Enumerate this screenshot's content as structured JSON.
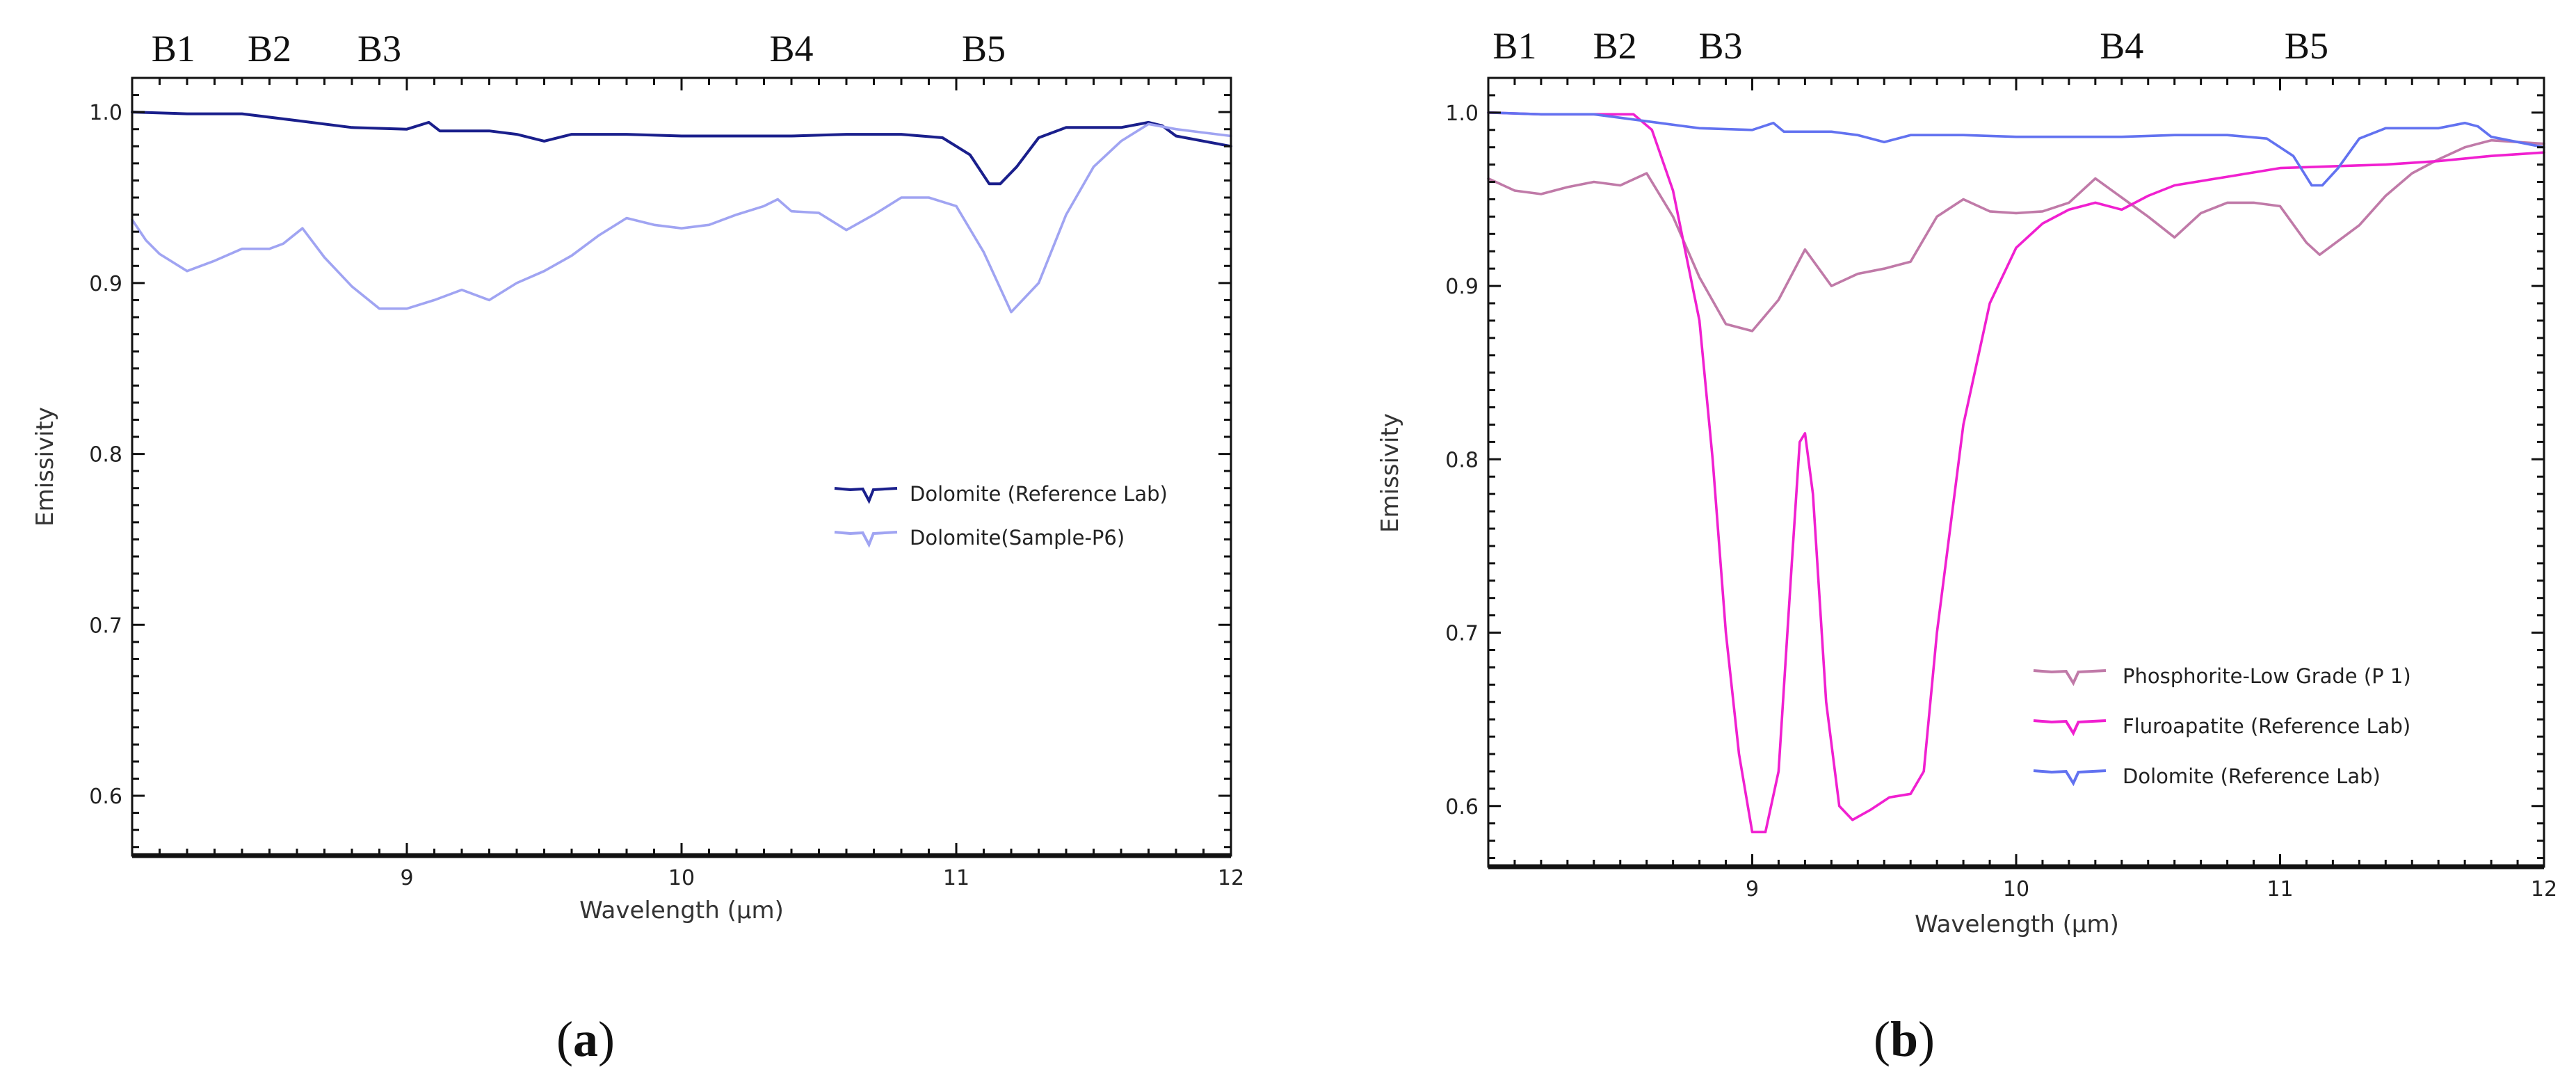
{
  "chart_data": [
    {
      "type": "line",
      "panel_label": "a",
      "xlabel": "Wavelength (μm)",
      "ylabel": "Emissivity",
      "xlim": [
        8.0,
        12.0
      ],
      "ylim": [
        0.565,
        1.02
      ],
      "x_ticks": [
        9,
        10,
        11,
        12
      ],
      "y_ticks": [
        0.6,
        0.7,
        0.8,
        0.9,
        1.0
      ],
      "x_tick_labels": [
        "9",
        "10",
        "11",
        "12"
      ],
      "y_tick_labels": [
        "0.6",
        "0.7",
        "0.8",
        "0.9",
        "1.0"
      ],
      "grid": false,
      "legend_position": "middle-right",
      "bands": [
        {
          "label": "B1",
          "x": 8.15
        },
        {
          "label": "B2",
          "x": 8.5
        },
        {
          "label": "B3",
          "x": 8.9
        },
        {
          "label": "B4",
          "x": 10.4
        },
        {
          "label": "B5",
          "x": 11.1
        }
      ],
      "series": [
        {
          "name": "Dolomite (Reference Lab)",
          "color": "#1a1f8c",
          "points": [
            [
              8.0,
              1.0
            ],
            [
              8.2,
              0.999
            ],
            [
              8.4,
              0.999
            ],
            [
              8.6,
              0.995
            ],
            [
              8.8,
              0.991
            ],
            [
              9.0,
              0.99
            ],
            [
              9.08,
              0.994
            ],
            [
              9.12,
              0.989
            ],
            [
              9.3,
              0.989
            ],
            [
              9.4,
              0.987
            ],
            [
              9.5,
              0.983
            ],
            [
              9.6,
              0.987
            ],
            [
              9.8,
              0.987
            ],
            [
              10.0,
              0.986
            ],
            [
              10.2,
              0.986
            ],
            [
              10.4,
              0.986
            ],
            [
              10.6,
              0.987
            ],
            [
              10.8,
              0.987
            ],
            [
              10.95,
              0.985
            ],
            [
              11.05,
              0.975
            ],
            [
              11.12,
              0.958
            ],
            [
              11.16,
              0.958
            ],
            [
              11.22,
              0.968
            ],
            [
              11.3,
              0.985
            ],
            [
              11.4,
              0.991
            ],
            [
              11.6,
              0.991
            ],
            [
              11.7,
              0.994
            ],
            [
              11.75,
              0.992
            ],
            [
              11.8,
              0.986
            ],
            [
              12.0,
              0.98
            ]
          ]
        },
        {
          "name": "Dolomite(Sample-P6)",
          "color": "#a0a4f2",
          "points": [
            [
              8.0,
              0.937
            ],
            [
              8.05,
              0.925
            ],
            [
              8.1,
              0.917
            ],
            [
              8.2,
              0.907
            ],
            [
              8.3,
              0.913
            ],
            [
              8.4,
              0.92
            ],
            [
              8.5,
              0.92
            ],
            [
              8.55,
              0.923
            ],
            [
              8.62,
              0.932
            ],
            [
              8.7,
              0.915
            ],
            [
              8.8,
              0.898
            ],
            [
              8.9,
              0.885
            ],
            [
              9.0,
              0.885
            ],
            [
              9.1,
              0.89
            ],
            [
              9.2,
              0.896
            ],
            [
              9.3,
              0.89
            ],
            [
              9.4,
              0.9
            ],
            [
              9.5,
              0.907
            ],
            [
              9.6,
              0.916
            ],
            [
              9.7,
              0.928
            ],
            [
              9.8,
              0.938
            ],
            [
              9.9,
              0.934
            ],
            [
              10.0,
              0.932
            ],
            [
              10.1,
              0.934
            ],
            [
              10.2,
              0.94
            ],
            [
              10.3,
              0.945
            ],
            [
              10.35,
              0.949
            ],
            [
              10.4,
              0.942
            ],
            [
              10.5,
              0.941
            ],
            [
              10.6,
              0.931
            ],
            [
              10.7,
              0.94
            ],
            [
              10.8,
              0.95
            ],
            [
              10.9,
              0.95
            ],
            [
              11.0,
              0.945
            ],
            [
              11.1,
              0.918
            ],
            [
              11.2,
              0.883
            ],
            [
              11.3,
              0.9
            ],
            [
              11.4,
              0.94
            ],
            [
              11.5,
              0.968
            ],
            [
              11.6,
              0.983
            ],
            [
              11.7,
              0.993
            ],
            [
              11.8,
              0.99
            ],
            [
              11.9,
              0.988
            ],
            [
              12.0,
              0.986
            ]
          ]
        }
      ]
    },
    {
      "type": "line",
      "panel_label": "b",
      "xlabel": "Wavelength (μm)",
      "ylabel": "Emissivity",
      "xlim": [
        8.0,
        12.0
      ],
      "ylim": [
        0.565,
        1.02
      ],
      "x_ticks": [
        9,
        10,
        11,
        12
      ],
      "y_ticks": [
        0.6,
        0.7,
        0.8,
        0.9,
        1.0
      ],
      "x_tick_labels": [
        "9",
        "10",
        "11",
        "12"
      ],
      "y_tick_labels": [
        "0.6",
        "0.7",
        "0.8",
        "0.9",
        "1.0"
      ],
      "grid": false,
      "legend_position": "bottom-right",
      "bands": [
        {
          "label": "B1",
          "x": 8.1
        },
        {
          "label": "B2",
          "x": 8.48
        },
        {
          "label": "B3",
          "x": 8.88
        },
        {
          "label": "B4",
          "x": 10.4
        },
        {
          "label": "B5",
          "x": 11.1
        }
      ],
      "series": [
        {
          "name": "Phosphorite-Low Grade (P 1)",
          "color": "#c07aa8",
          "points": [
            [
              8.0,
              0.962
            ],
            [
              8.1,
              0.955
            ],
            [
              8.2,
              0.953
            ],
            [
              8.3,
              0.957
            ],
            [
              8.4,
              0.96
            ],
            [
              8.5,
              0.958
            ],
            [
              8.6,
              0.965
            ],
            [
              8.7,
              0.94
            ],
            [
              8.8,
              0.905
            ],
            [
              8.9,
              0.878
            ],
            [
              9.0,
              0.874
            ],
            [
              9.1,
              0.892
            ],
            [
              9.2,
              0.921
            ],
            [
              9.3,
              0.9
            ],
            [
              9.4,
              0.907
            ],
            [
              9.5,
              0.91
            ],
            [
              9.6,
              0.914
            ],
            [
              9.7,
              0.94
            ],
            [
              9.8,
              0.95
            ],
            [
              9.9,
              0.943
            ],
            [
              10.0,
              0.942
            ],
            [
              10.1,
              0.943
            ],
            [
              10.2,
              0.948
            ],
            [
              10.3,
              0.962
            ],
            [
              10.4,
              0.951
            ],
            [
              10.5,
              0.94
            ],
            [
              10.6,
              0.928
            ],
            [
              10.7,
              0.942
            ],
            [
              10.8,
              0.948
            ],
            [
              10.9,
              0.948
            ],
            [
              11.0,
              0.946
            ],
            [
              11.1,
              0.925
            ],
            [
              11.15,
              0.918
            ],
            [
              11.3,
              0.935
            ],
            [
              11.4,
              0.952
            ],
            [
              11.5,
              0.965
            ],
            [
              11.6,
              0.973
            ],
            [
              11.7,
              0.98
            ],
            [
              11.8,
              0.984
            ],
            [
              12.0,
              0.982
            ]
          ]
        },
        {
          "name": "Fluroapatite (Reference Lab)",
          "color": "#f020d0",
          "points": [
            [
              8.0,
              1.0
            ],
            [
              8.2,
              0.999
            ],
            [
              8.4,
              0.999
            ],
            [
              8.55,
              0.999
            ],
            [
              8.62,
              0.99
            ],
            [
              8.7,
              0.955
            ],
            [
              8.8,
              0.88
            ],
            [
              8.85,
              0.8
            ],
            [
              8.9,
              0.7
            ],
            [
              8.95,
              0.63
            ],
            [
              9.0,
              0.585
            ],
            [
              9.05,
              0.585
            ],
            [
              9.1,
              0.62
            ],
            [
              9.15,
              0.74
            ],
            [
              9.18,
              0.81
            ],
            [
              9.2,
              0.815
            ],
            [
              9.23,
              0.78
            ],
            [
              9.28,
              0.66
            ],
            [
              9.33,
              0.6
            ],
            [
              9.38,
              0.592
            ],
            [
              9.45,
              0.598
            ],
            [
              9.52,
              0.605
            ],
            [
              9.6,
              0.607
            ],
            [
              9.65,
              0.62
            ],
            [
              9.7,
              0.7
            ],
            [
              9.8,
              0.82
            ],
            [
              9.9,
              0.89
            ],
            [
              10.0,
              0.922
            ],
            [
              10.1,
              0.936
            ],
            [
              10.2,
              0.944
            ],
            [
              10.3,
              0.948
            ],
            [
              10.4,
              0.944
            ],
            [
              10.5,
              0.952
            ],
            [
              10.6,
              0.958
            ],
            [
              10.8,
              0.963
            ],
            [
              11.0,
              0.968
            ],
            [
              11.2,
              0.969
            ],
            [
              11.4,
              0.97
            ],
            [
              11.6,
              0.972
            ],
            [
              11.8,
              0.975
            ],
            [
              12.0,
              0.977
            ]
          ]
        },
        {
          "name": "Dolomite (Reference Lab)",
          "color": "#6272f0",
          "points": [
            [
              8.0,
              1.0
            ],
            [
              8.2,
              0.999
            ],
            [
              8.4,
              0.999
            ],
            [
              8.6,
              0.995
            ],
            [
              8.8,
              0.991
            ],
            [
              9.0,
              0.99
            ],
            [
              9.08,
              0.994
            ],
            [
              9.12,
              0.989
            ],
            [
              9.3,
              0.989
            ],
            [
              9.4,
              0.987
            ],
            [
              9.5,
              0.983
            ],
            [
              9.6,
              0.987
            ],
            [
              9.8,
              0.987
            ],
            [
              10.0,
              0.986
            ],
            [
              10.2,
              0.986
            ],
            [
              10.4,
              0.986
            ],
            [
              10.6,
              0.987
            ],
            [
              10.8,
              0.987
            ],
            [
              10.95,
              0.985
            ],
            [
              11.05,
              0.975
            ],
            [
              11.12,
              0.958
            ],
            [
              11.16,
              0.958
            ],
            [
              11.22,
              0.968
            ],
            [
              11.3,
              0.985
            ],
            [
              11.4,
              0.991
            ],
            [
              11.6,
              0.991
            ],
            [
              11.7,
              0.994
            ],
            [
              11.75,
              0.992
            ],
            [
              11.8,
              0.986
            ],
            [
              12.0,
              0.98
            ]
          ]
        }
      ]
    }
  ]
}
